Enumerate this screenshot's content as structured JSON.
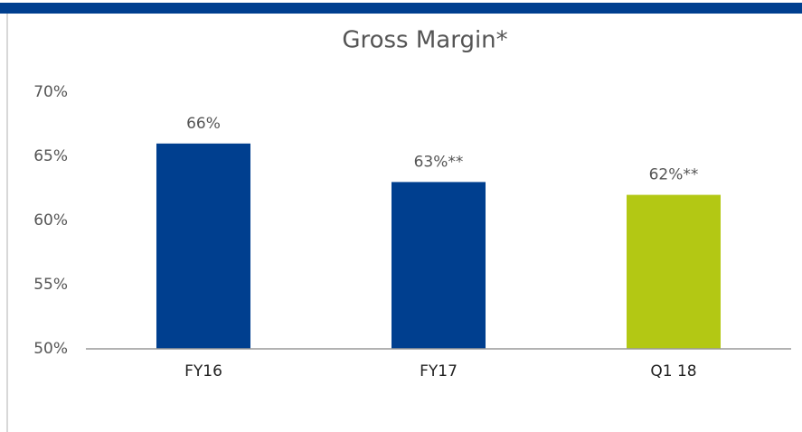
{
  "chart_data": {
    "type": "bar",
    "title": "Gross Margin*",
    "categories": [
      "FY16",
      "FY17",
      "Q1 18"
    ],
    "values": [
      66,
      63,
      62
    ],
    "value_labels": [
      "66%",
      "63%**",
      "62%**"
    ],
    "colors": [
      "#003f8f",
      "#003f8f",
      "#b3c814"
    ],
    "ylim": [
      50,
      70
    ],
    "yticks": [
      {
        "value": 50,
        "label": "50%"
      },
      {
        "value": 55,
        "label": "55%"
      },
      {
        "value": 60,
        "label": "60%"
      },
      {
        "value": 65,
        "label": "65%"
      },
      {
        "value": 70,
        "label": "70%"
      }
    ],
    "grid": false
  }
}
